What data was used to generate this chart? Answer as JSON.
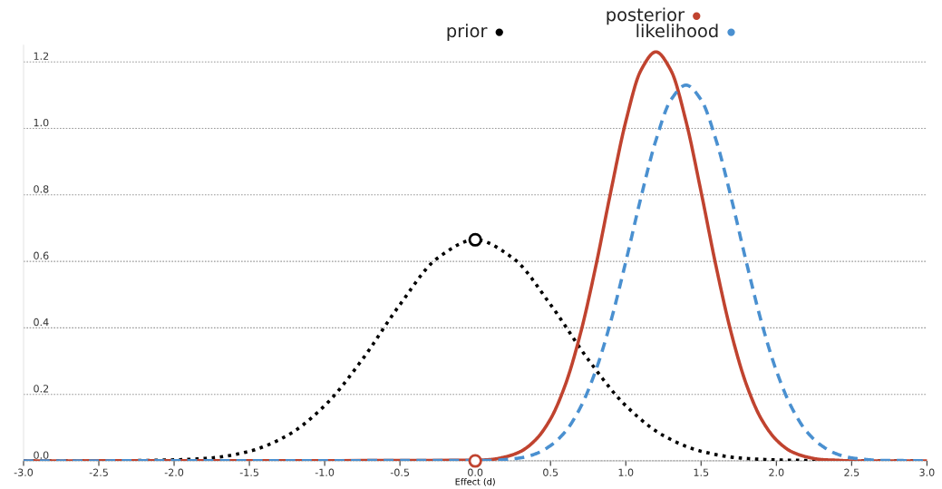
{
  "chart_data": {
    "type": "line",
    "xlabel": "Effect (d)",
    "xlim": [
      -3,
      3
    ],
    "xticks": [
      {
        "value": -3,
        "label": "-3.0"
      },
      {
        "value": -2.5,
        "label": "-2.5"
      },
      {
        "value": -2,
        "label": "-2.0"
      },
      {
        "value": -1.5,
        "label": "-1.5"
      },
      {
        "value": -1,
        "label": "-1.0"
      },
      {
        "value": -0.5,
        "label": "-0.5"
      },
      {
        "value": 0,
        "label": "0.0"
      },
      {
        "value": 0.5,
        "label": "0.5"
      },
      {
        "value": 1,
        "label": "1.0"
      },
      {
        "value": 1.5,
        "label": "1.5"
      },
      {
        "value": 2,
        "label": "2.0"
      },
      {
        "value": 2.5,
        "label": "2.5"
      },
      {
        "value": 3,
        "label": "3.0"
      }
    ],
    "ylim": [
      0,
      1.25
    ],
    "yticks": [
      {
        "value": 0,
        "label": "0.0"
      },
      0.2,
      0.4,
      0.6,
      0.8,
      {
        "value": 1,
        "label": "1.0"
      },
      1.2
    ],
    "grid": "y",
    "legend": "top",
    "series": [
      {
        "name": "prior",
        "color": "#000000",
        "line_style": "dotted",
        "x": [
          -3,
          -2.5,
          -2,
          -1.75,
          -1.5,
          -1.25,
          -1,
          -0.75,
          -0.5,
          -0.25,
          0,
          0.25,
          0.5,
          0.75,
          1,
          1.25,
          1.5,
          1.75,
          2,
          2.5,
          3
        ],
        "values": [
          0,
          0,
          0.003,
          0.009,
          0.029,
          0.076,
          0.166,
          0.305,
          0.47,
          0.61,
          0.665,
          0.61,
          0.47,
          0.305,
          0.166,
          0.076,
          0.029,
          0.009,
          0.003,
          0,
          0
        ]
      },
      {
        "name": "posterior",
        "color": "#c0432f",
        "line_style": "solid",
        "x": [
          -3,
          0,
          0.1,
          0.2,
          0.3,
          0.4,
          0.5,
          0.6,
          0.7,
          0.8,
          0.9,
          1.0,
          1.1,
          1.2,
          1.3,
          1.4,
          1.5,
          1.6,
          1.7,
          1.8,
          1.9,
          2.0,
          2.1,
          2.2,
          2.3,
          2.4,
          2.5,
          3
        ],
        "values": [
          0,
          0.002,
          0.004,
          0.012,
          0.028,
          0.063,
          0.126,
          0.231,
          0.385,
          0.584,
          0.809,
          1.021,
          1.174,
          1.23,
          1.174,
          1.021,
          0.809,
          0.584,
          0.385,
          0.231,
          0.126,
          0.063,
          0.028,
          0.012,
          0.004,
          0.002,
          0,
          0
        ]
      },
      {
        "name": "likelihood",
        "color": "#4a90d0",
        "line_style": "dashed",
        "x": [
          -3,
          0,
          0.1,
          0.2,
          0.3,
          0.4,
          0.5,
          0.6,
          0.7,
          0.8,
          0.9,
          1.0,
          1.1,
          1.2,
          1.3,
          1.4,
          1.5,
          1.6,
          1.7,
          1.8,
          1.9,
          2.0,
          2.1,
          2.2,
          2.3,
          2.4,
          2.5,
          2.6,
          2.7,
          2.8,
          3
        ],
        "values": [
          0,
          0.001,
          0.001,
          0.004,
          0.009,
          0.021,
          0.046,
          0.089,
          0.162,
          0.271,
          0.419,
          0.599,
          0.791,
          0.964,
          1.086,
          1.13,
          1.086,
          0.964,
          0.791,
          0.599,
          0.419,
          0.271,
          0.162,
          0.089,
          0.046,
          0.021,
          0.009,
          0.004,
          0.001,
          0.001,
          0
        ]
      },
      {
        "type": "scatter",
        "color": "#000000",
        "marker": "circle",
        "x": [
          0
        ],
        "values": [
          0.665
        ]
      },
      {
        "type": "scatter",
        "color": "#c0432f",
        "marker": "circle",
        "x": [
          0
        ],
        "values": [
          0
        ]
      }
    ]
  }
}
